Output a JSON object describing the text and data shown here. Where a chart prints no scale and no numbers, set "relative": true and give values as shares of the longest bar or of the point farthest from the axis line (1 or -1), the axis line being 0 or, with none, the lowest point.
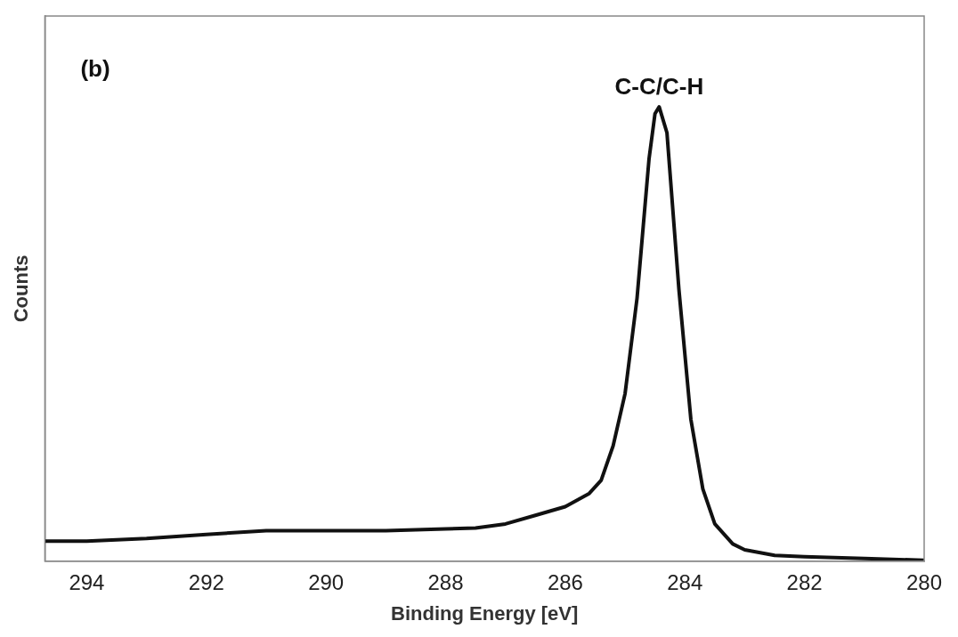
{
  "chart_data": {
    "type": "line",
    "xlabel": "Binding Energy [eV]",
    "ylabel": "Counts",
    "relative": true,
    "grid": false,
    "legend": false,
    "marker": "none",
    "line_style": "solid",
    "xlim": [
      294.7,
      280
    ],
    "xticks": [
      294,
      292,
      290,
      288,
      286,
      284,
      282,
      280
    ],
    "annotations": [
      "(b)",
      {
        "text": "C-C/C-H",
        "x": 284.43,
        "y": 1
      }
    ],
    "series": [
      {
        "color": "#111111",
        "x": [
          294.7,
          294,
          293,
          292,
          291,
          290,
          289,
          288,
          287.5,
          287,
          286.5,
          286,
          285.6,
          285.4,
          285.2,
          285,
          284.8,
          284.6,
          284.5,
          284.43,
          284.3,
          284.1,
          283.9,
          283.7,
          283.5,
          283.2,
          283,
          282.5,
          282,
          281,
          280
        ],
        "values": [
          0.044,
          0.044,
          0.05,
          0.059,
          0.067,
          0.067,
          0.067,
          0.071,
          0.073,
          0.082,
          0.101,
          0.12,
          0.149,
          0.178,
          0.254,
          0.369,
          0.579,
          0.885,
          0.985,
          1,
          0.943,
          0.598,
          0.312,
          0.159,
          0.082,
          0.038,
          0.025,
          0.013,
          0.01,
          0.006,
          0.002
        ]
      }
    ]
  }
}
